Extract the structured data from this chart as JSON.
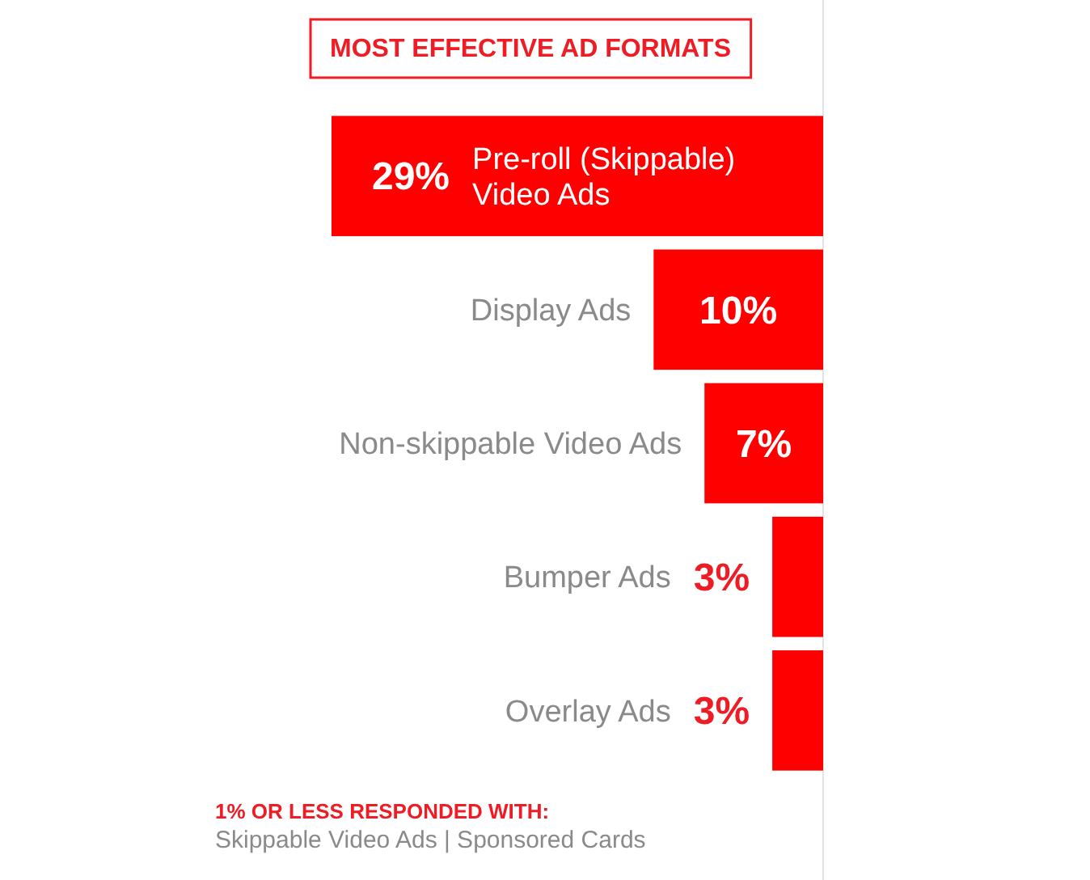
{
  "chart_data": {
    "type": "bar",
    "orientation": "horizontal",
    "title": "MOST EFFECTIVE AD FORMATS",
    "categories": [
      "Pre-roll (Skippable) Video Ads",
      "Display Ads",
      "Non-skippable Video Ads",
      "Bumper Ads",
      "Overlay Ads"
    ],
    "values": [
      29,
      10,
      7,
      3,
      3
    ],
    "color": "#ff0000",
    "value_labels": [
      "29%",
      "10%",
      "7%",
      "3%",
      "3%"
    ],
    "xlim": [
      30,
      0
    ],
    "annotations": [
      "1% OR LESS RESPONDED WITH:",
      "Skippable Video Ads | Sponsored Cards"
    ]
  }
}
